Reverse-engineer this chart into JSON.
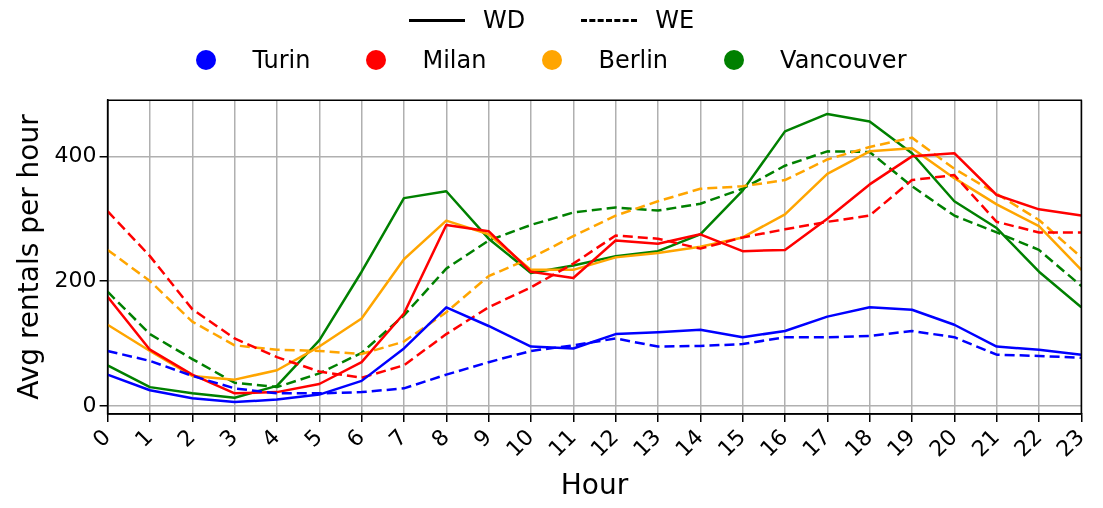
{
  "chart_data": {
    "type": "line",
    "xlabel": "Hour",
    "ylabel": "Avg rentals per hour",
    "x": [
      0,
      1,
      2,
      3,
      4,
      5,
      6,
      7,
      8,
      9,
      10,
      11,
      12,
      13,
      14,
      15,
      16,
      17,
      18,
      19,
      20,
      21,
      22,
      23
    ],
    "xlim": [
      0,
      23
    ],
    "xticks": [
      0,
      1,
      2,
      3,
      4,
      5,
      6,
      7,
      8,
      9,
      10,
      11,
      12,
      13,
      14,
      15,
      16,
      17,
      18,
      19,
      20,
      21,
      22,
      23
    ],
    "ylim": [
      -13,
      490
    ],
    "yticks": [
      0,
      200,
      400
    ],
    "grid": true,
    "legend": "top",
    "marker": "none",
    "series": [
      {
        "name": "WD",
        "color": "#000000",
        "line_style": "solid",
        "values": [
          null,
          null,
          null,
          null,
          null,
          null,
          null,
          null,
          null,
          null,
          null,
          null,
          null,
          null,
          null,
          null,
          null,
          null,
          null,
          null,
          null,
          null,
          null,
          null
        ]
      },
      {
        "name": "WE",
        "color": "#000000",
        "line_style": "dashed",
        "values": [
          null,
          null,
          null,
          null,
          null,
          null,
          null,
          null,
          null,
          null,
          null,
          null,
          null,
          null,
          null,
          null,
          null,
          null,
          null,
          null,
          null,
          null,
          null,
          null
        ]
      },
      {
        "name": "Turin",
        "color": "#0000ff",
        "marker": "circle",
        "type": "scatter",
        "values": [
          null,
          null,
          null,
          null,
          null,
          null,
          null,
          null,
          null,
          null,
          null,
          null,
          null,
          null,
          null,
          null,
          null,
          null,
          null,
          null,
          null,
          null,
          null,
          null
        ]
      },
      {
        "name": "Milan",
        "color": "#ff0000",
        "marker": "circle",
        "type": "scatter",
        "values": [
          null,
          null,
          null,
          null,
          null,
          null,
          null,
          null,
          null,
          null,
          null,
          null,
          null,
          null,
          null,
          null,
          null,
          null,
          null,
          null,
          null,
          null,
          null,
          null
        ]
      },
      {
        "name": "Berlin",
        "color": "#ffa500",
        "marker": "circle",
        "type": "scatter",
        "values": [
          null,
          null,
          null,
          null,
          null,
          null,
          null,
          null,
          null,
          null,
          null,
          null,
          null,
          null,
          null,
          null,
          null,
          null,
          null,
          null,
          null,
          null,
          null,
          null
        ]
      },
      {
        "name": "Vancouver",
        "color": "#008000",
        "marker": "circle",
        "type": "scatter",
        "values": [
          null,
          null,
          null,
          null,
          null,
          null,
          null,
          null,
          null,
          null,
          null,
          null,
          null,
          null,
          null,
          null,
          null,
          null,
          null,
          null,
          null,
          null,
          null,
          null
        ]
      },
      {
        "color": "#0000ff",
        "line_style": "solid",
        "values": [
          50,
          25,
          12,
          6,
          10,
          18,
          40,
          92,
          158,
          128,
          95,
          92,
          115,
          118,
          122,
          110,
          120,
          143,
          158,
          154,
          130,
          95,
          90,
          82
        ]
      },
      {
        "color": "#0000ff",
        "line_style": "dashed",
        "values": [
          88,
          72,
          48,
          28,
          20,
          20,
          22,
          28,
          50,
          70,
          88,
          97,
          108,
          95,
          96,
          99,
          110,
          110,
          112,
          120,
          110,
          82,
          80,
          77
        ]
      },
      {
        "color": "#ff0000",
        "line_style": "solid",
        "values": [
          175,
          90,
          50,
          20,
          22,
          35,
          70,
          148,
          290,
          280,
          215,
          205,
          265,
          260,
          275,
          248,
          250,
          300,
          355,
          400,
          405,
          338,
          315,
          305
        ]
      },
      {
        "color": "#ff0000",
        "line_style": "dashed",
        "values": [
          312,
          240,
          155,
          108,
          78,
          55,
          45,
          65,
          115,
          158,
          190,
          228,
          273,
          268,
          252,
          270,
          283,
          295,
          305,
          362,
          370,
          295,
          278,
          278
        ]
      },
      {
        "color": "#ffa500",
        "line_style": "solid",
        "values": [
          130,
          88,
          48,
          42,
          57,
          95,
          140,
          235,
          297,
          275,
          218,
          218,
          238,
          245,
          255,
          270,
          307,
          372,
          408,
          413,
          365,
          323,
          288,
          218
        ]
      },
      {
        "color": "#ffa500",
        "line_style": "dashed",
        "values": [
          250,
          200,
          135,
          97,
          90,
          88,
          83,
          103,
          150,
          208,
          237,
          272,
          305,
          328,
          348,
          352,
          362,
          395,
          415,
          430,
          380,
          340,
          298,
          238
        ]
      },
      {
        "color": "#008000",
        "line_style": "solid",
        "values": [
          65,
          30,
          20,
          13,
          32,
          105,
          215,
          333,
          344,
          268,
          213,
          225,
          240,
          248,
          275,
          345,
          440,
          468,
          456,
          405,
          328,
          285,
          215,
          158
        ]
      },
      {
        "color": "#008000",
        "line_style": "dashed",
        "values": [
          183,
          115,
          75,
          37,
          30,
          52,
          85,
          145,
          220,
          265,
          290,
          310,
          318,
          313,
          324,
          348,
          385,
          408,
          407,
          352,
          305,
          278,
          250,
          192
        ]
      }
    ]
  }
}
